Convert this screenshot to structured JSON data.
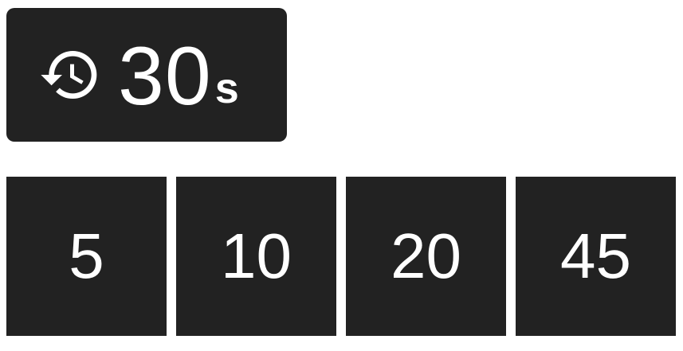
{
  "current_timer": {
    "icon": "history-icon",
    "value": "30",
    "unit": "s"
  },
  "presets": [
    {
      "label": "5"
    },
    {
      "label": "10"
    },
    {
      "label": "20"
    },
    {
      "label": "45"
    }
  ],
  "colors": {
    "tile_background": "#222222",
    "text": "#ffffff",
    "page_background": "#ffffff"
  }
}
